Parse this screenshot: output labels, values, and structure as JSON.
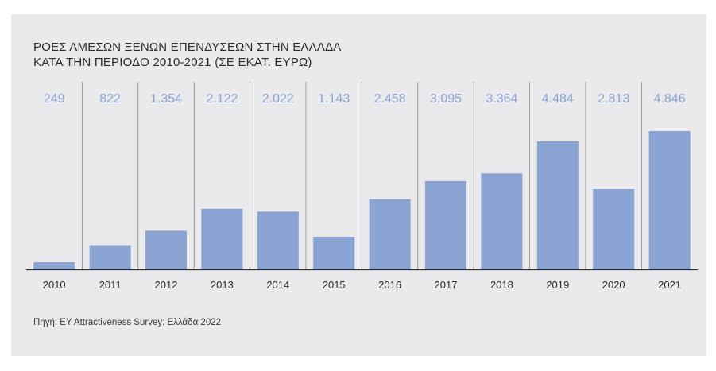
{
  "chart_data": {
    "type": "bar",
    "title_line1": "ΡΟΕΣ ΑΜΕΣΩΝ ΞΕΝΩΝ ΕΠΕΝΔΥΣΕΩΝ ΣΤΗΝ ΕΛΛΑΔΑ",
    "title_line2": "ΚΑΤΑ ΤΗΝ ΠΕΡΙΟΔΟ 2010-2021 (ΣΕ ΕΚΑΤ. ΕΥΡΩ)",
    "categories": [
      "2010",
      "2011",
      "2012",
      "2013",
      "2014",
      "2015",
      "2016",
      "2017",
      "2018",
      "2019",
      "2020",
      "2021"
    ],
    "values": [
      249,
      822,
      1354,
      2122,
      2022,
      1143,
      2458,
      3095,
      3364,
      4484,
      2813,
      4846
    ],
    "value_labels": [
      "249",
      "822",
      "1.354",
      "2.122",
      "2.022",
      "1.143",
      "2.458",
      "3.095",
      "3.364",
      "4.484",
      "2.813",
      "4.846"
    ],
    "ylim": [
      0,
      4846
    ],
    "grid": false,
    "bar_color": "#8aa3d3",
    "label_color": "#8aa3d3",
    "background": "#eaeaec"
  },
  "source": "Πηγή: EY Attractiveness Survey: Ελλάδα 2022"
}
